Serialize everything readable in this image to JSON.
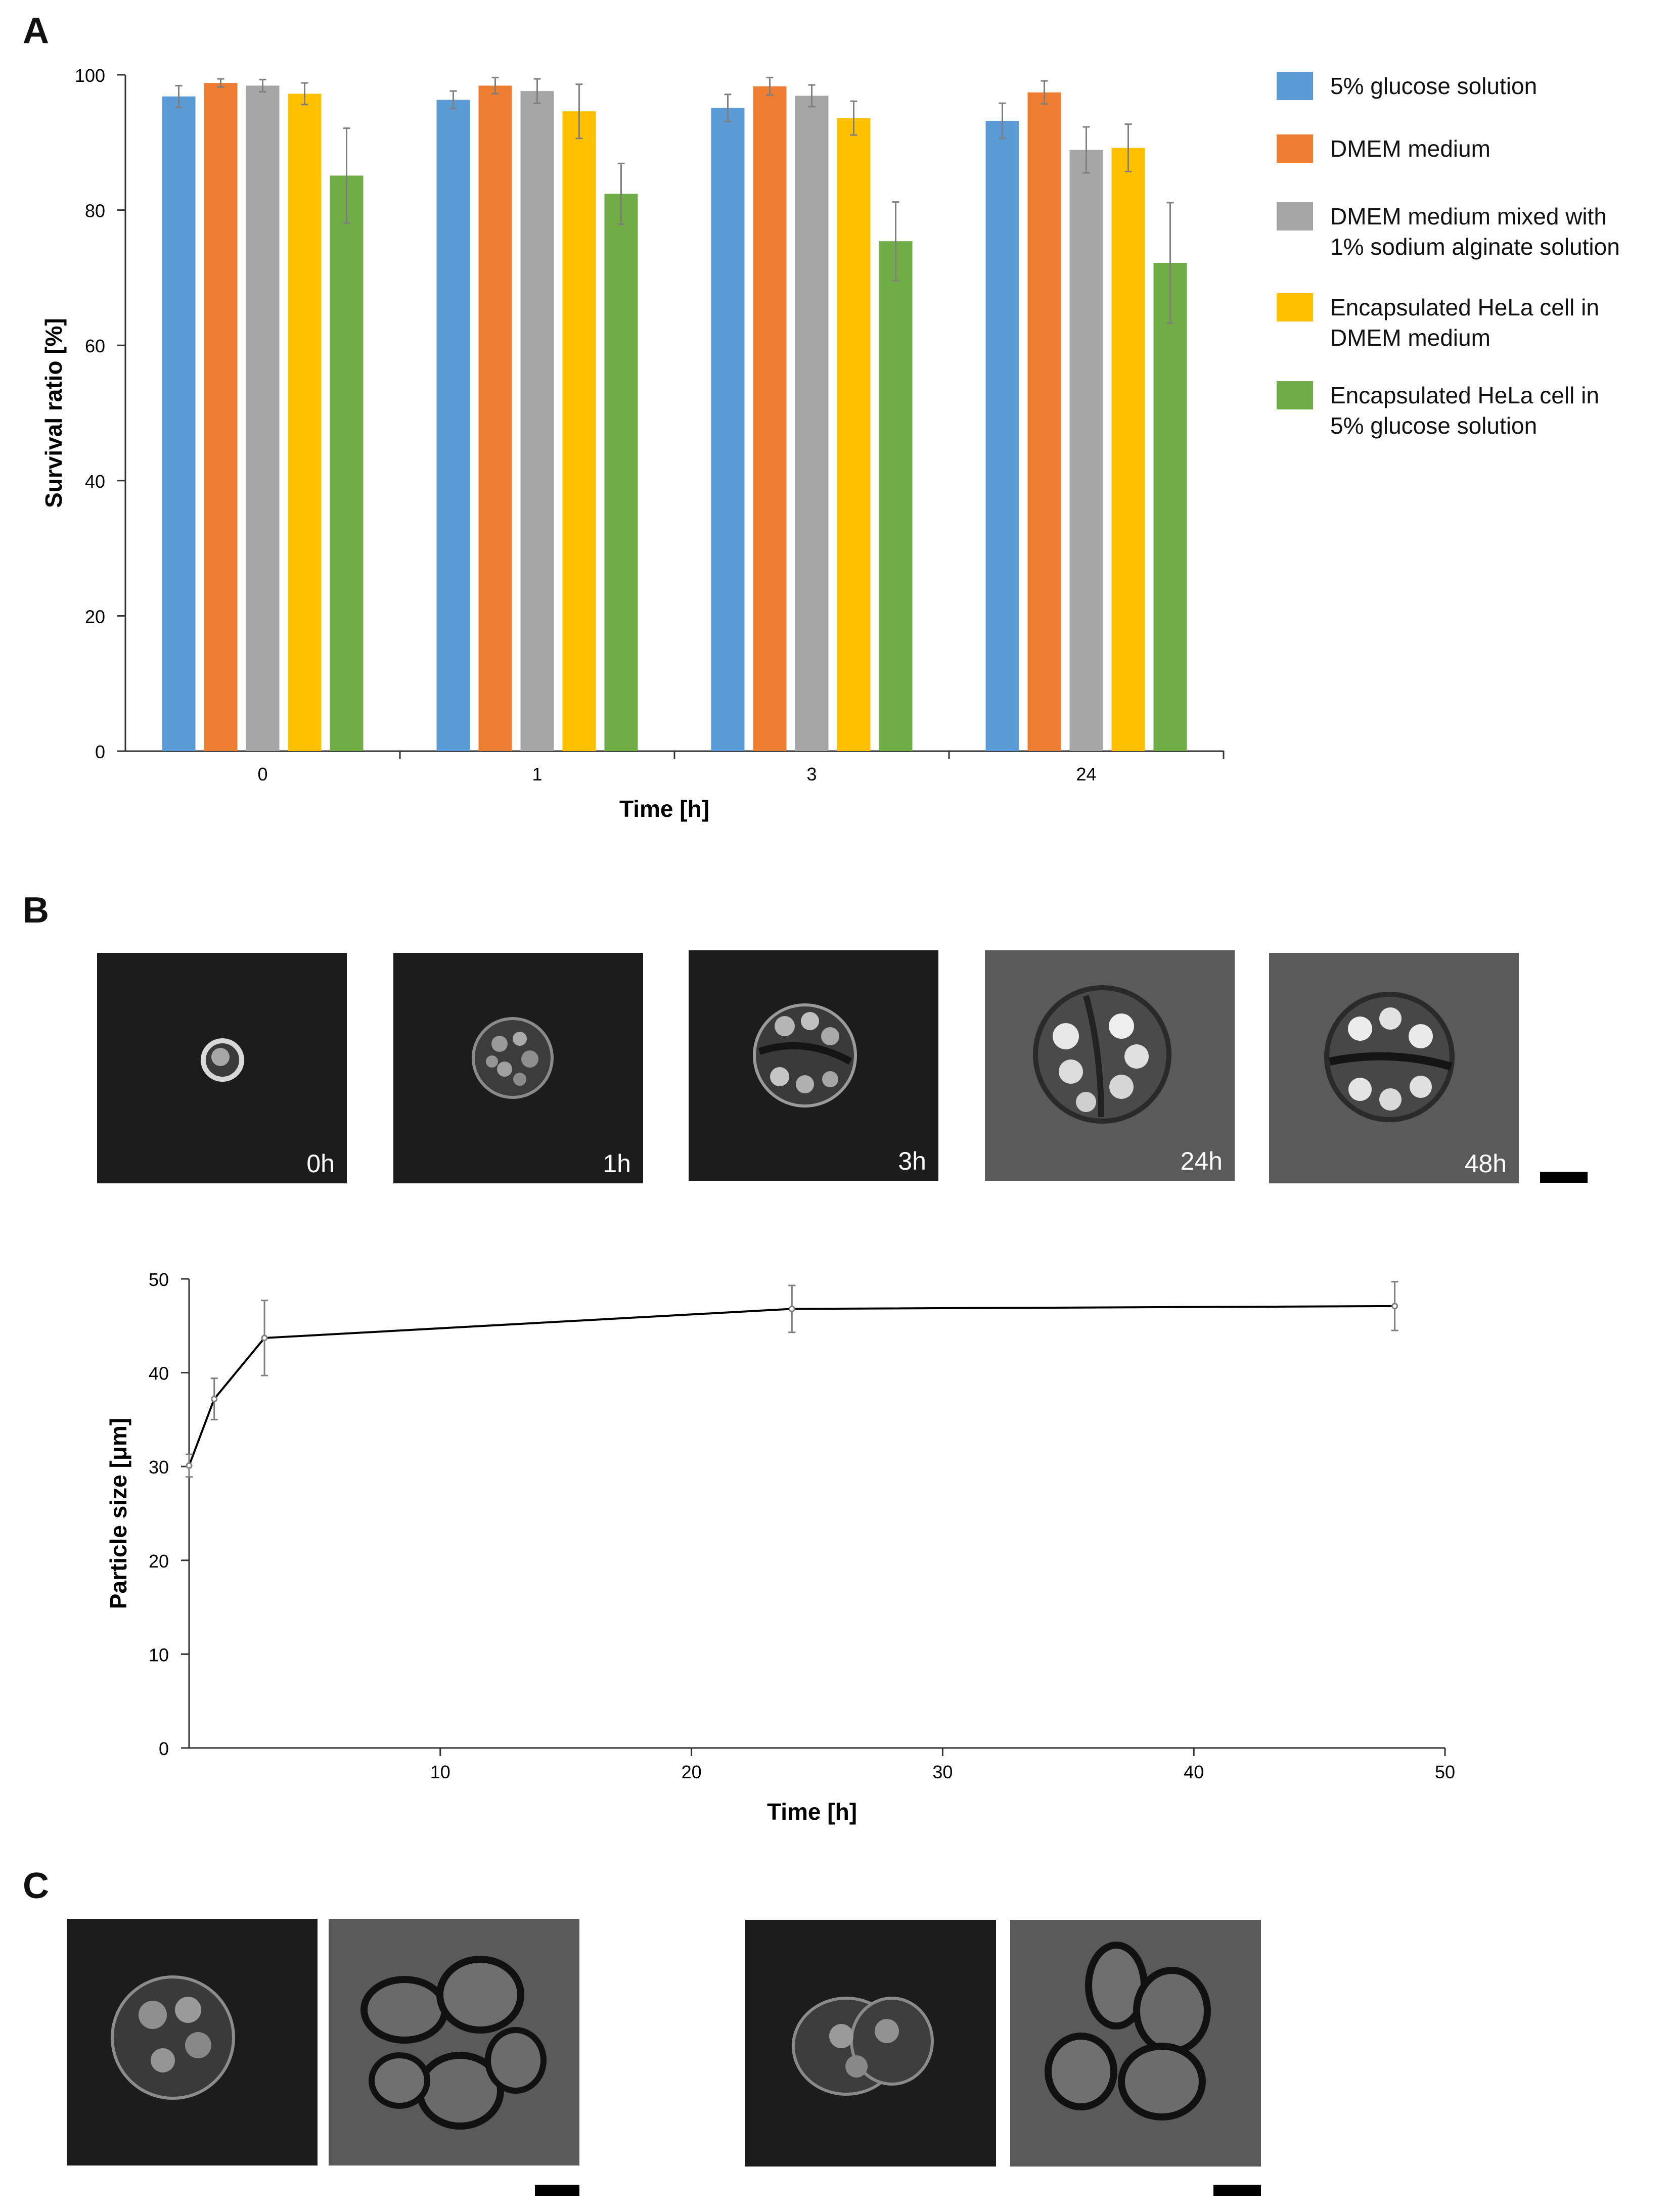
{
  "panels": {
    "a": "A",
    "b": "B",
    "c": "C"
  },
  "colors": {
    "axis": "#333333",
    "errorbar": "#7f7f7f"
  },
  "chart_data": [
    {
      "id": "survival",
      "type": "bar",
      "title": "",
      "xlabel": "Time [h]",
      "ylabel": "Survival ratio [%]",
      "ylim": [
        0,
        100
      ],
      "yticks": [
        0,
        20,
        40,
        60,
        80,
        100
      ],
      "categories": [
        "0",
        "1",
        "3",
        "24"
      ],
      "series": [
        {
          "name": "5% glucose solution",
          "color": "#5b9bd5",
          "values": [
            96.8,
            96.3,
            95.1,
            93.2
          ],
          "errors": [
            1.6,
            1.3,
            2.0,
            2.6
          ]
        },
        {
          "name": "DMEM medium",
          "color": "#ed7d31",
          "values": [
            98.8,
            98.4,
            98.3,
            97.4
          ],
          "errors": [
            0.6,
            1.2,
            1.3,
            1.7
          ]
        },
        {
          "name": "DMEM medium mixed with\n1% sodium alginate solution",
          "color": "#a5a5a5",
          "values": [
            98.4,
            97.6,
            96.9,
            88.9
          ],
          "errors": [
            0.9,
            1.8,
            1.6,
            3.4
          ]
        },
        {
          "name": "Encapsulated HeLa cell in\nDMEM medium",
          "color": "#ffc000",
          "values": [
            97.2,
            94.6,
            93.6,
            89.2
          ],
          "errors": [
            1.6,
            4.0,
            2.5,
            3.5
          ]
        },
        {
          "name": "Encapsulated HeLa cell in\n5% glucose solution",
          "color": "#70ad47",
          "values": [
            85.1,
            82.4,
            75.4,
            72.2
          ],
          "errors": [
            7.0,
            4.5,
            5.8,
            8.9
          ]
        }
      ]
    },
    {
      "id": "particle-size",
      "type": "line",
      "title": "",
      "xlabel": "Time [h]",
      "ylabel": "Particle size [μm]",
      "xlim": [
        0,
        50
      ],
      "ylim": [
        0,
        50
      ],
      "xticks": [
        10,
        20,
        30,
        40,
        50
      ],
      "yticks": [
        0,
        10,
        20,
        30,
        40,
        50
      ],
      "series": [
        {
          "name": "Particle size",
          "color": "#000000",
          "x": [
            0,
            1,
            3,
            24,
            48
          ],
          "y": [
            30.1,
            37.2,
            43.7,
            46.8,
            47.1
          ],
          "errors": [
            1.2,
            2.2,
            4.0,
            2.5,
            2.6
          ]
        }
      ]
    }
  ],
  "micrographs_b": [
    {
      "label": "0h",
      "stage": "single-cell"
    },
    {
      "label": "1h",
      "stage": "cell-cluster"
    },
    {
      "label": "3h",
      "stage": "split-cluster"
    },
    {
      "label": "24h",
      "stage": "large-cluster"
    },
    {
      "label": "48h",
      "stage": "large-split-cluster"
    }
  ]
}
